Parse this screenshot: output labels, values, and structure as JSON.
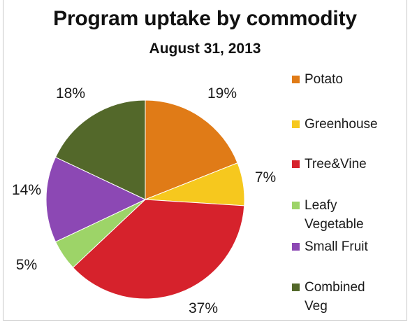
{
  "chart_data": {
    "type": "pie",
    "title": "Program uptake by commodity",
    "subtitle": "August 31, 2013",
    "slices": [
      {
        "name": "Potato",
        "value": 19,
        "label": "19%",
        "color": "#e07b17"
      },
      {
        "name": "Greenhouse",
        "value": 7,
        "label": "7%",
        "color": "#f6c81e"
      },
      {
        "name": "Tree&Vine",
        "value": 37,
        "label": "37%",
        "color": "#d6222c"
      },
      {
        "name": "Leafy Vegetable",
        "value": 5,
        "label": "5%",
        "color": "#9dd468"
      },
      {
        "name": "Small Fruit",
        "value": 14,
        "label": "14%",
        "color": "#8c48b4"
      },
      {
        "name": "Combined Veg",
        "value": 18,
        "label": "18%",
        "color": "#53682a"
      }
    ],
    "legend_position": "right"
  },
  "legend": {
    "items": [
      {
        "line1": "Potato",
        "line2": ""
      },
      {
        "line1": "Greenhouse",
        "line2": ""
      },
      {
        "line1": "Tree&Vine",
        "line2": ""
      },
      {
        "line1": "Leafy",
        "line2": "Vegetable"
      },
      {
        "line1": "Small Fruit",
        "line2": ""
      },
      {
        "line1": "Combined",
        "line2": "Veg"
      }
    ]
  }
}
